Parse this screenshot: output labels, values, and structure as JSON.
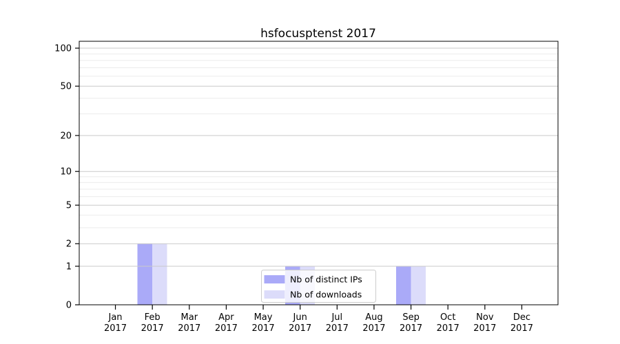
{
  "chart_data": {
    "type": "bar",
    "title": "hsfocusptenst 2017",
    "categories": [
      "Jan",
      "Feb",
      "Mar",
      "Apr",
      "May",
      "Jun",
      "Jul",
      "Aug",
      "Sep",
      "Oct",
      "Nov",
      "Dec"
    ],
    "year_label": "2017",
    "series": [
      {
        "name": "Nb of distinct IPs",
        "color": "#aaaaf8",
        "values": [
          0,
          2,
          0,
          0,
          0,
          1,
          0,
          0,
          1,
          0,
          0,
          0
        ]
      },
      {
        "name": "Nb of downloads",
        "color": "#dcdcfa",
        "values": [
          0,
          2,
          0,
          0,
          0,
          1,
          0,
          0,
          1,
          0,
          0,
          0
        ]
      }
    ],
    "y_axis": {
      "ticks": [
        0,
        1,
        2,
        5,
        10,
        20,
        50,
        100
      ],
      "minor_ticks": [
        3,
        4,
        6,
        7,
        8,
        9,
        30,
        40,
        60,
        70,
        80,
        90
      ],
      "scale": "log10(1+v)",
      "ylim": [
        0,
        112
      ]
    },
    "x_axis": {
      "label_lines": 2
    },
    "legend": {
      "position": "inside-bottom-center",
      "entries": [
        "Nb of distinct IPs",
        "Nb of downloads"
      ]
    },
    "grid": {
      "major": true,
      "minor": true,
      "drawn_over_bars": true
    }
  },
  "colors": {
    "background": "#ffffff",
    "bar_distinct_ips": "#aaaaf8",
    "bar_downloads": "#dcdcfa",
    "grid_major": "#c9c9c9",
    "grid_minor": "#ebebeb",
    "axis_frame": "#000000",
    "legend_border": "#cccccc",
    "legend_background": "rgba(255,255,255,0.8)"
  }
}
